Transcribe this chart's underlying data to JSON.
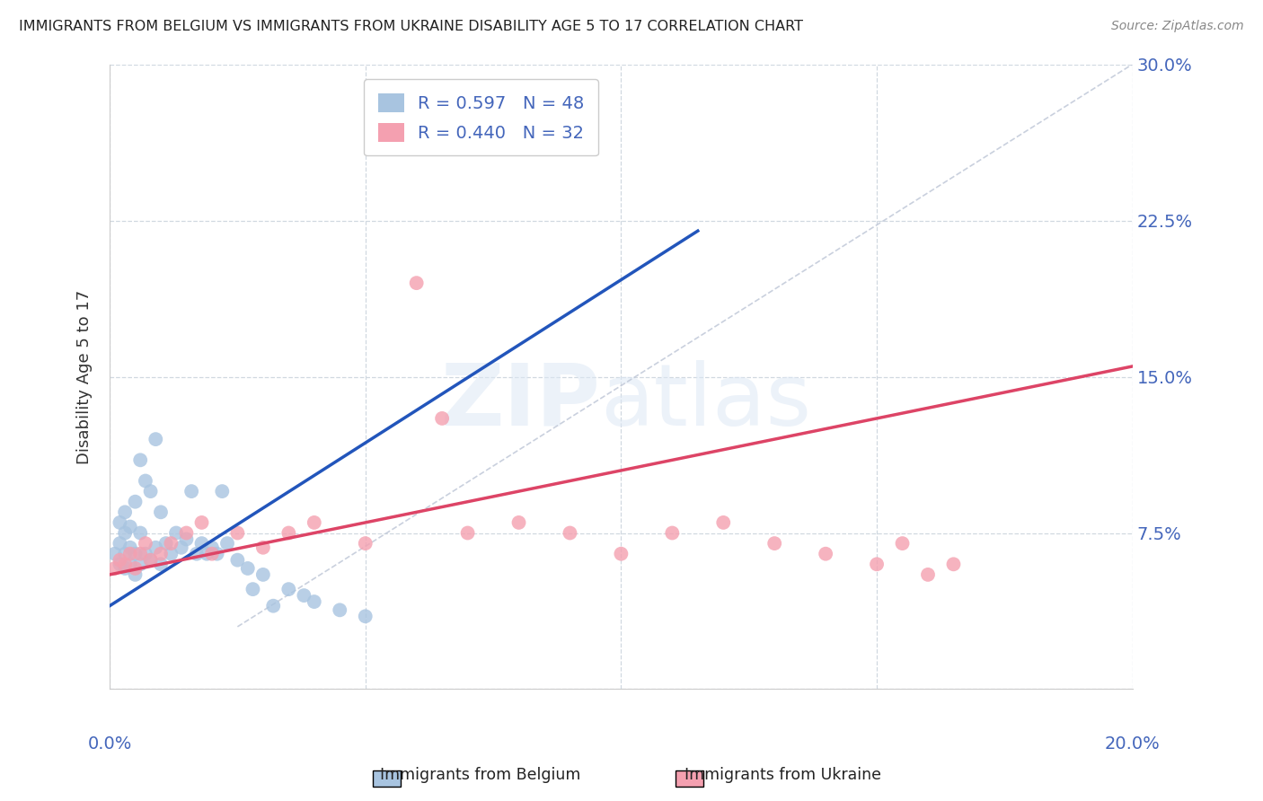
{
  "title": "IMMIGRANTS FROM BELGIUM VS IMMIGRANTS FROM UKRAINE DISABILITY AGE 5 TO 17 CORRELATION CHART",
  "source": "Source: ZipAtlas.com",
  "ylabel": "Disability Age 5 to 17",
  "xlim": [
    0.0,
    0.2
  ],
  "ylim": [
    0.0,
    0.3
  ],
  "yticks": [
    0.0,
    0.075,
    0.15,
    0.225,
    0.3
  ],
  "ytick_labels": [
    "",
    "7.5%",
    "15.0%",
    "22.5%",
    "30.0%"
  ],
  "xticks": [
    0.0,
    0.05,
    0.1,
    0.15,
    0.2
  ],
  "belgium_r": 0.597,
  "belgium_n": 48,
  "ukraine_r": 0.44,
  "ukraine_n": 32,
  "belgium_color": "#a8c4e0",
  "ukraine_color": "#f4a0b0",
  "belgium_line_color": "#2255bb",
  "ukraine_line_color": "#dd4466",
  "diag_line_color": "#c0c8d8",
  "belgium_scatter_x": [
    0.001,
    0.002,
    0.002,
    0.002,
    0.003,
    0.003,
    0.003,
    0.003,
    0.004,
    0.004,
    0.004,
    0.005,
    0.005,
    0.005,
    0.006,
    0.006,
    0.006,
    0.007,
    0.007,
    0.008,
    0.008,
    0.009,
    0.009,
    0.01,
    0.01,
    0.011,
    0.012,
    0.013,
    0.014,
    0.015,
    0.016,
    0.017,
    0.018,
    0.019,
    0.02,
    0.021,
    0.022,
    0.023,
    0.025,
    0.027,
    0.028,
    0.03,
    0.032,
    0.035,
    0.038,
    0.04,
    0.045,
    0.05
  ],
  "belgium_scatter_y": [
    0.065,
    0.06,
    0.07,
    0.08,
    0.058,
    0.065,
    0.075,
    0.085,
    0.06,
    0.068,
    0.078,
    0.055,
    0.065,
    0.09,
    0.06,
    0.075,
    0.11,
    0.065,
    0.1,
    0.062,
    0.095,
    0.068,
    0.12,
    0.06,
    0.085,
    0.07,
    0.065,
    0.075,
    0.068,
    0.072,
    0.095,
    0.065,
    0.07,
    0.065,
    0.068,
    0.065,
    0.095,
    0.07,
    0.062,
    0.058,
    0.048,
    0.055,
    0.04,
    0.048,
    0.045,
    0.042,
    0.038,
    0.035
  ],
  "ukraine_scatter_x": [
    0.001,
    0.002,
    0.003,
    0.004,
    0.005,
    0.006,
    0.007,
    0.008,
    0.01,
    0.012,
    0.015,
    0.018,
    0.02,
    0.025,
    0.03,
    0.035,
    0.04,
    0.05,
    0.06,
    0.065,
    0.07,
    0.08,
    0.09,
    0.1,
    0.11,
    0.12,
    0.13,
    0.14,
    0.15,
    0.155,
    0.16,
    0.165
  ],
  "ukraine_scatter_y": [
    0.058,
    0.062,
    0.06,
    0.065,
    0.058,
    0.065,
    0.07,
    0.062,
    0.065,
    0.07,
    0.075,
    0.08,
    0.065,
    0.075,
    0.068,
    0.075,
    0.08,
    0.07,
    0.195,
    0.13,
    0.075,
    0.08,
    0.075,
    0.065,
    0.075,
    0.08,
    0.07,
    0.065,
    0.06,
    0.07,
    0.055,
    0.06
  ],
  "belgium_line_x": [
    0.0,
    0.115
  ],
  "belgium_line_y": [
    0.04,
    0.22
  ],
  "ukraine_line_x": [
    0.0,
    0.2
  ],
  "ukraine_line_y": [
    0.055,
    0.155
  ],
  "diag_line_x": [
    0.025,
    0.2
  ],
  "diag_line_y": [
    0.03,
    0.3
  ],
  "background_color": "#ffffff",
  "grid_color": "#d0d8e0",
  "title_color": "#222222",
  "tick_color": "#4466bb",
  "ylabel_color": "#333333"
}
